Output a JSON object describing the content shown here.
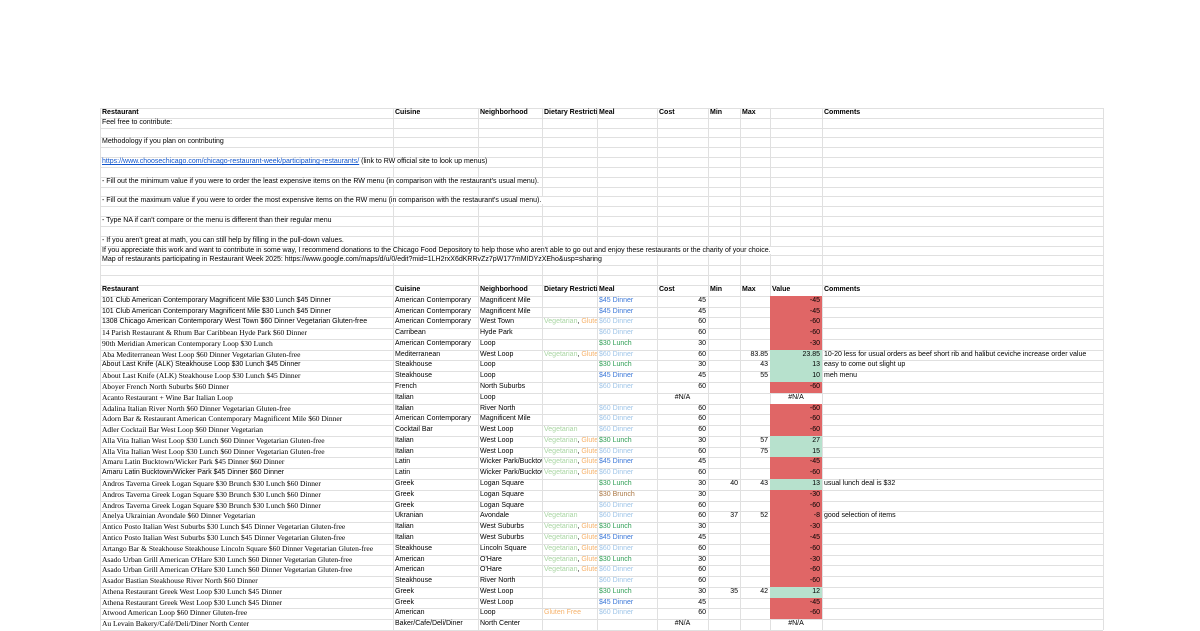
{
  "palette": {
    "gridline": "#e0e0e0",
    "link_blue": "#1155cc",
    "red_fill": "#e06666",
    "green_fill": "#b7e1cd",
    "vegetarian_text": "#a8d5a2",
    "gluten_text": "#f6b26b",
    "dinner45_text": "#3c78d8",
    "dinner60_text": "#9fc5e8",
    "lunch30_text": "#2e9e54",
    "brunch30_text": "#aa7744"
  },
  "header_top": {
    "restaurant": "Restaurant",
    "cuisine": "Cuisine",
    "neighborhood": "Neighborhood",
    "dietary": "Dietary Restrictions",
    "meal": "Meal",
    "cost": "Cost",
    "min": "Min",
    "max": "Max",
    "value": "",
    "comments": "Comments"
  },
  "header_table": {
    "restaurant": "Restaurant",
    "cuisine": "Cuisine",
    "neighborhood": "Neighborhood",
    "dietary": "Dietary Restrictions",
    "meal": "Meal",
    "cost": "Cost",
    "min": "Min",
    "max": "Max",
    "value": "Value",
    "comments": "Comments"
  },
  "intro": [
    {
      "row": 1,
      "text": "Feel free to contribute:"
    },
    {
      "row": 3,
      "text": "Methodology if you plan on contributing"
    },
    {
      "row": 5,
      "link": "https://www.choosechicago.com/chicago-restaurant-week/participating-restaurants/",
      "text": " (link to RW official site to look up menus)"
    },
    {
      "row": 7,
      "text": "- Fill out the minimum value if you were to order the least expensive items on the RW menu (in comparison with the restaurant's usual menu)."
    },
    {
      "row": 9,
      "text": "- Fill out the maximum value if you were to order the most expensive items on the RW menu (in comparison with the restaurant's usual menu)."
    },
    {
      "row": 11,
      "text": "- Type NA if can't compare or the menu is different than their regular menu"
    },
    {
      "row": 13,
      "text": "- If you aren't great at math, you can still help by filling in the pull-down values."
    },
    {
      "row": 14,
      "text": "If you appreciate this work and want to contribute in some way, I recommend donations to the Chicago Food Depository to help those who aren't able to go out and enjoy these restaurants or the charity of your choice."
    },
    {
      "row": 15,
      "text": "Map of restaurants participating in Restaurant Week 2025: https://www.google.com/maps/d/u/0/edit?mid=1LH2rxX6dKRRvZz7pW177mMIDYzXEho&usp=sharing"
    }
  ],
  "table": {
    "rows": [
      {
        "restaurant": "101 Club American Contemporary Magnificent Mile $30 Lunch $45 Dinner",
        "serif": false,
        "cuisine": "American Contemporary",
        "neighborhood": "Magnificent Mile",
        "dietary": [],
        "meal": {
          "t": "$45 Dinner",
          "c": "#3c78d8"
        },
        "cost": "45",
        "min": "",
        "max": "",
        "value": "-45",
        "fill": "#e06666",
        "comment": ""
      },
      {
        "restaurant": "101 Club American Contemporary Magnificent Mile $30 Lunch $45 Dinner",
        "serif": false,
        "cuisine": "American Contemporary",
        "neighborhood": "Magnificent Mile",
        "dietary": [],
        "meal": {
          "t": "$45 Dinner",
          "c": "#3c78d8"
        },
        "cost": "45",
        "min": "",
        "max": "",
        "value": "-45",
        "fill": "#e06666",
        "comment": ""
      },
      {
        "restaurant": "1308 Chicago American Contemporary West Town $60 Dinner Vegetarian Gluten-free",
        "serif": false,
        "cuisine": "American Contemporary",
        "neighborhood": "West Town",
        "dietary": [
          {
            "t": "Vegetarian",
            "c": "#a8d5a2"
          },
          {
            "t": ", ",
            "c": "#000000"
          },
          {
            "t": "Gluten Free",
            "c": "#f6b26b"
          }
        ],
        "meal": {
          "t": "$60 Dinner",
          "c": "#9fc5e8"
        },
        "cost": "60",
        "min": "",
        "max": "",
        "value": "-60",
        "fill": "#e06666",
        "comment": ""
      },
      {
        "restaurant": "14 Parish Restaurant & Rhum Bar Caribbean Hyde Park $60 Dinner",
        "serif": true,
        "cuisine": "Carribean",
        "neighborhood": "Hyde Park",
        "dietary": [],
        "meal": {
          "t": "$60 Dinner",
          "c": "#9fc5e8"
        },
        "cost": "60",
        "min": "",
        "max": "",
        "value": "-60",
        "fill": "#e06666",
        "comment": ""
      },
      {
        "restaurant": "90th Meridian American Contemporary Loop $30 Lunch",
        "serif": true,
        "cuisine": "American Contemporary",
        "neighborhood": "Loop",
        "dietary": [],
        "meal": {
          "t": "$30 Lunch",
          "c": "#2e9e54"
        },
        "cost": "30",
        "min": "",
        "max": "",
        "value": "-30",
        "fill": "#e06666",
        "comment": ""
      },
      {
        "restaurant": "Aba Mediterranean West Loop $60 Dinner Vegetarian Gluten-free",
        "serif": true,
        "cuisine": "Mediterranean",
        "neighborhood": "West Loop",
        "dietary": [
          {
            "t": "Vegetarian",
            "c": "#a8d5a2"
          },
          {
            "t": ", ",
            "c": "#000000"
          },
          {
            "t": "Gluten Free",
            "c": "#f6b26b"
          }
        ],
        "meal": {
          "t": "$60 Dinner",
          "c": "#9fc5e8"
        },
        "cost": "60",
        "min": "",
        "max": "83.85",
        "value": "23.85",
        "fill": "#b7e1cd",
        "comment": "10-20 less for usual orders as beef short rib and halibut ceviche increase order value"
      },
      {
        "restaurant": "About Last Knife (ALK) Steakhouse Loop $30 Lunch $45 Dinner",
        "serif": false,
        "cuisine": "Steakhouse",
        "neighborhood": "Loop",
        "dietary": [],
        "meal": {
          "t": "$30 Lunch",
          "c": "#2e9e54"
        },
        "cost": "30",
        "min": "",
        "max": "43",
        "value": "13",
        "fill": "#b7e1cd",
        "comment": "easy to come out slight up"
      },
      {
        "restaurant": "About Last Knife (ALK) Steakhouse Loop $30 Lunch $45 Dinner",
        "serif": true,
        "cuisine": "Steakhouse",
        "neighborhood": "Loop",
        "dietary": [],
        "meal": {
          "t": "$45 Dinner",
          "c": "#3c78d8"
        },
        "cost": "45",
        "min": "",
        "max": "55",
        "value": "10",
        "fill": "#b7e1cd",
        "comment": "meh menu"
      },
      {
        "restaurant": "Aboyer French North Suburbs $60 Dinner",
        "serif": true,
        "cuisine": "French",
        "neighborhood": "North Suburbs",
        "dietary": [],
        "meal": {
          "t": "$60 Dinner",
          "c": "#9fc5e8"
        },
        "cost": "60",
        "min": "",
        "max": "",
        "value": "-60",
        "fill": "#e06666",
        "comment": ""
      },
      {
        "restaurant": "Acanto Restaurant + Wine Bar Italian Loop",
        "serif": true,
        "cuisine": "Italian",
        "neighborhood": "Loop",
        "dietary": [],
        "meal": {
          "t": "",
          "c": "#000000"
        },
        "cost": "#N/A",
        "min": "",
        "max": "",
        "value": "#N/A",
        "fill": "",
        "comment": ""
      },
      {
        "restaurant": "Adalina Italian River North $60 Dinner Vegetarian Gluten-free",
        "serif": true,
        "cuisine": "Italian",
        "neighborhood": "River North",
        "dietary": [],
        "meal": {
          "t": "$60 Dinner",
          "c": "#9fc5e8"
        },
        "cost": "60",
        "min": "",
        "max": "",
        "value": "-60",
        "fill": "#e06666",
        "comment": ""
      },
      {
        "restaurant": "Adorn Bar & Restaurant American Contemporary Magnificent Mile $60 Dinner",
        "serif": true,
        "cuisine": "American Contemporary",
        "neighborhood": "Magnificent Mile",
        "dietary": [],
        "meal": {
          "t": "$60 Dinner",
          "c": "#9fc5e8"
        },
        "cost": "60",
        "min": "",
        "max": "",
        "value": "-60",
        "fill": "#e06666",
        "comment": ""
      },
      {
        "restaurant": "Adler Cocktail Bar West Loop $60 Dinner Vegetarian",
        "serif": true,
        "cuisine": "Cocktail Bar",
        "neighborhood": "West Loop",
        "dietary": [
          {
            "t": "Vegetarian",
            "c": "#a8d5a2"
          }
        ],
        "meal": {
          "t": "$60 Dinner",
          "c": "#9fc5e8"
        },
        "cost": "60",
        "min": "",
        "max": "",
        "value": "-60",
        "fill": "#e06666",
        "comment": ""
      },
      {
        "restaurant": "Alla Vita Italian West Loop $30 Lunch $60 Dinner Vegetarian Gluten-free",
        "serif": true,
        "cuisine": "Italian",
        "neighborhood": "West Loop",
        "dietary": [
          {
            "t": "Vegetarian",
            "c": "#a8d5a2"
          },
          {
            "t": ", ",
            "c": "#000000"
          },
          {
            "t": "Gluten Free",
            "c": "#f6b26b"
          }
        ],
        "meal": {
          "t": "$30 Lunch",
          "c": "#2e9e54"
        },
        "cost": "30",
        "min": "",
        "max": "57",
        "value": "27",
        "fill": "#b7e1cd",
        "comment": ""
      },
      {
        "restaurant": "Alla Vita Italian West Loop $30 Lunch $60 Dinner Vegetarian Gluten-free",
        "serif": true,
        "cuisine": "Italian",
        "neighborhood": "West Loop",
        "dietary": [
          {
            "t": "Vegetarian",
            "c": "#a8d5a2"
          },
          {
            "t": ", ",
            "c": "#000000"
          },
          {
            "t": "Gluten Free",
            "c": "#f6b26b"
          }
        ],
        "meal": {
          "t": "$60 Dinner",
          "c": "#9fc5e8"
        },
        "cost": "60",
        "min": "",
        "max": "75",
        "value": "15",
        "fill": "#b7e1cd",
        "comment": ""
      },
      {
        "restaurant": "Amaru Latin Bucktown/Wicker Park $45 Dinner $60 Dinner",
        "serif": true,
        "cuisine": "Latin",
        "neighborhood": "Wicker Park/Bucktown",
        "dietary": [
          {
            "t": "Vegetarian",
            "c": "#a8d5a2"
          },
          {
            "t": ", ",
            "c": "#000000"
          },
          {
            "t": "Gluten Free",
            "c": "#f6b26b"
          }
        ],
        "meal": {
          "t": "$45 Dinner",
          "c": "#3c78d8"
        },
        "cost": "45",
        "min": "",
        "max": "",
        "value": "-45",
        "fill": "#e06666",
        "comment": ""
      },
      {
        "restaurant": "Amaru Latin Bucktown/Wicker Park $45 Dinner $60 Dinner",
        "serif": false,
        "cuisine": "Latin",
        "neighborhood": "Wicker Park/Bucktown",
        "dietary": [
          {
            "t": "Vegetarian",
            "c": "#a8d5a2"
          },
          {
            "t": ", ",
            "c": "#000000"
          },
          {
            "t": "Gluten Free",
            "c": "#f6b26b"
          }
        ],
        "meal": {
          "t": "$60 Dinner",
          "c": "#9fc5e8"
        },
        "cost": "60",
        "min": "",
        "max": "",
        "value": "-60",
        "fill": "#e06666",
        "comment": ""
      },
      {
        "restaurant": "Andros Taverna Greek Logan Square $30 Brunch $30 Lunch $60 Dinner",
        "serif": true,
        "cuisine": "Greek",
        "neighborhood": "Logan Square",
        "dietary": [],
        "meal": {
          "t": "$30 Lunch",
          "c": "#2e9e54"
        },
        "cost": "30",
        "min": "40",
        "max": "43",
        "value": "13",
        "fill": "#b7e1cd",
        "comment": "usual lunch deal is $32"
      },
      {
        "restaurant": "Andros Taverna Greek Logan Square $30 Brunch $30 Lunch $60 Dinner",
        "serif": true,
        "cuisine": "Greek",
        "neighborhood": "Logan Square",
        "dietary": [],
        "meal": {
          "t": "$30 Brunch",
          "c": "#aa7744"
        },
        "cost": "30",
        "min": "",
        "max": "",
        "value": "-30",
        "fill": "#e06666",
        "comment": ""
      },
      {
        "restaurant": "Andros Taverna Greek Logan Square $30 Brunch $30 Lunch $60 Dinner",
        "serif": true,
        "cuisine": "Greek",
        "neighborhood": "Logan Square",
        "dietary": [],
        "meal": {
          "t": "$60 Dinner",
          "c": "#9fc5e8"
        },
        "cost": "60",
        "min": "",
        "max": "",
        "value": "-60",
        "fill": "#e06666",
        "comment": ""
      },
      {
        "restaurant": "Anelya Ukrainian Avondale $60 Dinner Vegetarian",
        "serif": true,
        "cuisine": "Ukranian",
        "neighborhood": "Avondale",
        "dietary": [
          {
            "t": "Vegetarian",
            "c": "#a8d5a2"
          }
        ],
        "meal": {
          "t": "$60 Dinner",
          "c": "#9fc5e8"
        },
        "cost": "60",
        "min": "37",
        "max": "52",
        "value": "-8",
        "fill": "#e06666",
        "comment": "good selection of items"
      },
      {
        "restaurant": "Antico Posto Italian West Suburbs $30 Lunch $45 Dinner Vegetarian Gluten-free",
        "serif": true,
        "cuisine": "Italian",
        "neighborhood": "West Suburbs",
        "dietary": [
          {
            "t": "Vegetarian",
            "c": "#a8d5a2"
          },
          {
            "t": ", ",
            "c": "#000000"
          },
          {
            "t": "Gluten Free",
            "c": "#f6b26b"
          }
        ],
        "meal": {
          "t": "$30 Lunch",
          "c": "#2e9e54"
        },
        "cost": "30",
        "min": "",
        "max": "",
        "value": "-30",
        "fill": "#e06666",
        "comment": ""
      },
      {
        "restaurant": "Antico Posto Italian West Suburbs $30 Lunch $45 Dinner Vegetarian Gluten-free",
        "serif": true,
        "cuisine": "Italian",
        "neighborhood": "West Suburbs",
        "dietary": [
          {
            "t": "Vegetarian",
            "c": "#a8d5a2"
          },
          {
            "t": ", ",
            "c": "#000000"
          },
          {
            "t": "Gluten Free",
            "c": "#f6b26b"
          }
        ],
        "meal": {
          "t": "$45 Dinner",
          "c": "#3c78d8"
        },
        "cost": "45",
        "min": "",
        "max": "",
        "value": "-45",
        "fill": "#e06666",
        "comment": ""
      },
      {
        "restaurant": "Artango Bar & Steakhouse Steakhouse Lincoln Square $60 Dinner Vegetarian Gluten-free",
        "serif": true,
        "cuisine": "Steakhouse",
        "neighborhood": "Lincoln Square",
        "dietary": [
          {
            "t": "Vegetarian",
            "c": "#a8d5a2"
          },
          {
            "t": ", ",
            "c": "#000000"
          },
          {
            "t": "Gluten Free",
            "c": "#f6b26b"
          }
        ],
        "meal": {
          "t": "$60 Dinner",
          "c": "#9fc5e8"
        },
        "cost": "60",
        "min": "",
        "max": "",
        "value": "-60",
        "fill": "#e06666",
        "comment": ""
      },
      {
        "restaurant": "Asado Urban Grill American O'Hare $30 Lunch $60 Dinner Vegetarian Gluten-free",
        "serif": true,
        "cuisine": "American",
        "neighborhood": "O'Hare",
        "dietary": [
          {
            "t": "Vegetarian",
            "c": "#a8d5a2"
          },
          {
            "t": ", ",
            "c": "#000000"
          },
          {
            "t": "Gluten Free",
            "c": "#f6b26b"
          }
        ],
        "meal": {
          "t": "$30 Lunch",
          "c": "#2e9e54"
        },
        "cost": "30",
        "min": "",
        "max": "",
        "value": "-30",
        "fill": "#e06666",
        "comment": ""
      },
      {
        "restaurant": "Asado Urban Grill American O'Hare $30 Lunch $60 Dinner Vegetarian Gluten-free",
        "serif": true,
        "cuisine": "American",
        "neighborhood": "O'Hare",
        "dietary": [
          {
            "t": "Vegetarian",
            "c": "#a8d5a2"
          },
          {
            "t": ", ",
            "c": "#000000"
          },
          {
            "t": "Gluten Free",
            "c": "#f6b26b"
          }
        ],
        "meal": {
          "t": "$60 Dinner",
          "c": "#9fc5e8"
        },
        "cost": "60",
        "min": "",
        "max": "",
        "value": "-60",
        "fill": "#e06666",
        "comment": ""
      },
      {
        "restaurant": "Asador Bastian Steakhouse River North $60 Dinner",
        "serif": true,
        "cuisine": "Steakhouse",
        "neighborhood": "River North",
        "dietary": [],
        "meal": {
          "t": "$60 Dinner",
          "c": "#9fc5e8"
        },
        "cost": "60",
        "min": "",
        "max": "",
        "value": "-60",
        "fill": "#e06666",
        "comment": ""
      },
      {
        "restaurant": "Athena Restaurant Greek West Loop $30 Lunch $45 Dinner",
        "serif": true,
        "cuisine": "Greek",
        "neighborhood": "West Loop",
        "dietary": [],
        "meal": {
          "t": "$30 Lunch",
          "c": "#2e9e54"
        },
        "cost": "30",
        "min": "35",
        "max": "42",
        "value": "12",
        "fill": "#b7e1cd",
        "comment": ""
      },
      {
        "restaurant": "Athena Restaurant Greek West Loop $30 Lunch $45 Dinner",
        "serif": true,
        "cuisine": "Greek",
        "neighborhood": "West Loop",
        "dietary": [],
        "meal": {
          "t": "$45 Dinner",
          "c": "#3c78d8"
        },
        "cost": "45",
        "min": "",
        "max": "",
        "value": "-45",
        "fill": "#e06666",
        "comment": ""
      },
      {
        "restaurant": "Atwood American Loop $60 Dinner Gluten-free",
        "serif": true,
        "cuisine": "American",
        "neighborhood": "Loop",
        "dietary": [
          {
            "t": "Gluten Free",
            "c": "#f6b26b"
          }
        ],
        "meal": {
          "t": "$60 Dinner",
          "c": "#9fc5e8"
        },
        "cost": "60",
        "min": "",
        "max": "",
        "value": "-60",
        "fill": "#e06666",
        "comment": ""
      },
      {
        "restaurant": "Au Levain Bakery/Café/Deli/Diner North Center",
        "serif": true,
        "cuisine": "Baker/Cafe/Deli/Diner",
        "neighborhood": "North Center",
        "dietary": [],
        "meal": {
          "t": "",
          "c": "#000000"
        },
        "cost": "#N/A",
        "min": "",
        "max": "",
        "value": "#N/A",
        "fill": "",
        "comment": ""
      }
    ]
  }
}
